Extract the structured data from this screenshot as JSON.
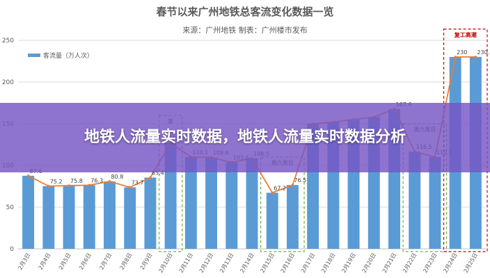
{
  "banner": {
    "text": "地铁人流量实时数据，地铁人流量实时数据分析"
  },
  "chart_data": {
    "type": "bar",
    "title": "春节以来广州地铁总客流变化数据一览",
    "subtitle": "来源：广州地铁   制表：广州楼市发布",
    "legend": {
      "label": "客流量（万人次）",
      "placement": "top-left"
    },
    "categories": [
      "2月3日",
      "2月4日",
      "2月5日",
      "2月6日",
      "2月7日",
      "2月8日",
      "2月9日",
      "2月10日",
      "2月11日",
      "2月12日",
      "2月13日",
      "2月14日",
      "2月15日",
      "2月16日",
      "2月17日",
      "2月18日",
      "2月19日",
      "2月20日",
      "2月21日",
      "2月22日",
      "2月23日",
      "2月24日",
      "2月25日"
    ],
    "values": [
      87.6,
      75.2,
      75.8,
      76.3,
      80.8,
      73.7,
      85.4,
      126.7,
      110.1,
      109.6,
      103.6,
      108.5,
      67.2,
      76.5,
      150,
      152,
      155,
      158,
      167.6,
      116.5,
      110.1,
      230,
      230.1
    ],
    "data_labels": [
      "87.6",
      "75.2",
      "75.8",
      "76.3",
      "80.8",
      "73.7",
      "85.4",
      "126.7",
      "110.1",
      "109.6",
      "103.6",
      "108.5",
      "67.2",
      "76.5",
      "",
      "",
      "",
      "",
      "167.6",
      "116.5",
      "110.1",
      "230",
      "230.1"
    ],
    "ylim": [
      0,
      250
    ],
    "yticks": [
      "0",
      "50",
      "100",
      "150",
      "200",
      "250"
    ],
    "grid": true,
    "bar_color": "#5b9bd5",
    "line_color": "#ed7d31",
    "annotations": [
      {
        "label": "复",
        "from": 7,
        "to": 7,
        "color": "#70ad47"
      },
      {
        "label": "周六周日",
        "from": 12,
        "to": 13,
        "color": "#70ad47"
      },
      {
        "label": "周六周日",
        "from": 19,
        "to": 20,
        "color": "#70ad47"
      },
      {
        "label": "复工高潮",
        "from": 21,
        "to": 22,
        "color": "#c00000"
      }
    ]
  }
}
